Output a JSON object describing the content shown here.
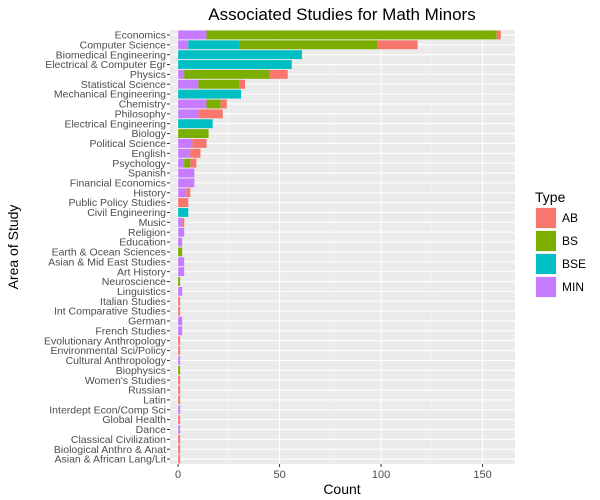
{
  "chart_data": {
    "type": "bar",
    "orientation": "horizontal",
    "stacked": true,
    "title": "Associated Studies for Math Minors",
    "xlabel": "Count",
    "ylabel": "Area of Study",
    "xlim": [
      -4,
      166
    ],
    "xticks": [
      0,
      50,
      100,
      150
    ],
    "grid": true,
    "legend": {
      "title": "Type",
      "placement": "right",
      "entries": [
        {
          "name": "AB",
          "color": "#F8766D"
        },
        {
          "name": "BS",
          "color": "#7CAE00"
        },
        {
          "name": "BSE",
          "color": "#00BFC4"
        },
        {
          "name": "MIN",
          "color": "#C77CFF"
        }
      ]
    },
    "stack_order": [
      "MIN",
      "BSE",
      "BS",
      "AB"
    ],
    "categories": [
      "Economics",
      "Computer Science",
      "Biomedical Engineering",
      "Electrical & Computer Egr",
      "Physics",
      "Statistical Science",
      "Mechanical Engineering",
      "Chemistry",
      "Philosophy",
      "Electrical Engineering",
      "Biology",
      "Political Science",
      "English",
      "Psychology",
      "Spanish",
      "Financial Economics",
      "History",
      "Public Policy Studies",
      "Civil Engineering",
      "Music",
      "Religion",
      "Education",
      "Earth & Ocean Sciences",
      "Asian & Mid East Studies",
      "Art History",
      "Neuroscience",
      "Linguistics",
      "Italian Studies",
      "Int Comparative Studies",
      "German",
      "French Studies",
      "Evolutionary Anthropology",
      "Environmental Sci/Policy",
      "Cultural Anthropology",
      "Biophysics",
      "Women's Studies",
      "Russian",
      "Latin",
      "Interdept Econ/Comp Sci",
      "Global Health",
      "Dance",
      "Classical Civilization",
      "Biological Anthro & Anat",
      "Asian & African Lang/Lit"
    ],
    "series": [
      {
        "name": "MIN",
        "values": [
          14,
          5,
          0,
          0,
          3,
          10,
          0,
          14,
          10,
          0,
          0,
          7,
          6,
          3,
          8,
          8,
          4,
          0,
          0,
          2,
          3,
          2,
          0,
          3,
          3,
          0,
          2,
          0,
          0,
          2,
          2,
          0,
          0,
          1,
          0,
          0,
          0,
          0,
          1,
          0,
          1,
          0,
          0,
          0
        ]
      },
      {
        "name": "BSE",
        "values": [
          0,
          25,
          61,
          56,
          0,
          0,
          31,
          0,
          0,
          17,
          0,
          0,
          0,
          0,
          0,
          0,
          0,
          0,
          5,
          0,
          0,
          0,
          0,
          0,
          0,
          0,
          0,
          0,
          0,
          0,
          0,
          0,
          0,
          0,
          0,
          0,
          0,
          0,
          0,
          0,
          0,
          0,
          0,
          0
        ]
      },
      {
        "name": "BS",
        "values": [
          143,
          68,
          0,
          0,
          42,
          20,
          0,
          7,
          0,
          0,
          15,
          0,
          0,
          3,
          0,
          0,
          0,
          0,
          0,
          0,
          0,
          0,
          2,
          0,
          0,
          1,
          0,
          0,
          0,
          0,
          0,
          0,
          0,
          0,
          1,
          0,
          0,
          0,
          0,
          0,
          0,
          0,
          0,
          0
        ]
      },
      {
        "name": "AB",
        "values": [
          2,
          20,
          0,
          0,
          9,
          3,
          0,
          3,
          12,
          0,
          0,
          7,
          5,
          3,
          0,
          0,
          2,
          5,
          0,
          1,
          0,
          0,
          0,
          0,
          0,
          0,
          0,
          1,
          1,
          0,
          0,
          1,
          1,
          0,
          0,
          1,
          1,
          1,
          0,
          1,
          0,
          1,
          1,
          1
        ]
      }
    ]
  }
}
